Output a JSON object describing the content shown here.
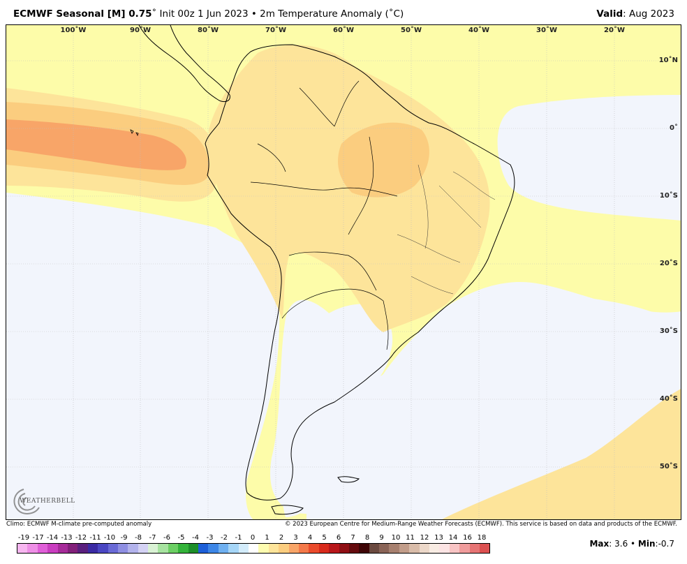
{
  "header": {
    "title_bold": "ECMWF Seasonal [M] 0.75",
    "title_rest": "˚ Init 00z 1 Jun 2023 • 2m Temperature Anomaly (˚C)",
    "valid_label": "Valid",
    "valid_value": ": Aug 2023"
  },
  "map": {
    "lon_labels": [
      "100˚W",
      "90˚W",
      "80˚W",
      "70˚W",
      "60˚W",
      "50˚W",
      "40˚W",
      "30˚W",
      "20˚W"
    ],
    "lat_labels": [
      "10˚N",
      "0˚",
      "10˚S",
      "20˚S",
      "30˚S",
      "40˚S",
      "50˚S"
    ],
    "colors": {
      "ocean_neutral": "#f2f5fc",
      "anom_0_1": "#fdfca9",
      "anom_1_2": "#fde49a",
      "anom_2_3": "#fbcd7f",
      "anom_3_4": "#f8a568"
    }
  },
  "logo": {
    "text": "WEATHERBELL"
  },
  "footer": {
    "left": "Climo: ECMWF M-climate pre-computed anomaly",
    "right": "© 2023 European Centre for Medium-Range Weather Forecasts (ECMWF). This service is based on data and products of the ECMWF."
  },
  "legend": {
    "labels": [
      "-19",
      "-17",
      "-14",
      "-13",
      "-12",
      "-11",
      "-10",
      "-9",
      "-8",
      "-7",
      "-6",
      "-5",
      "-4",
      "-3",
      "-2",
      "-1",
      "0",
      "1",
      "2",
      "3",
      "4",
      "5",
      "6",
      "7",
      "8",
      "9",
      "10",
      "11",
      "12",
      "13",
      "14",
      "16",
      "18"
    ],
    "colors": [
      "#f7b6f0",
      "#ee8fe6",
      "#e05fd8",
      "#c93dbf",
      "#a62b99",
      "#82207a",
      "#5a1f7e",
      "#3b2aa3",
      "#4a46c2",
      "#6a6ad6",
      "#8f8fe2",
      "#b3b3ec",
      "#d4d2f4",
      "#d9f2d4",
      "#a7e3a0",
      "#6ccf64",
      "#34b33a",
      "#1d8f2a",
      "#1d5fd8",
      "#3d86e6",
      "#6fb0f0",
      "#a6d6f7",
      "#d3ecfb",
      "#ffffff",
      "#fdfcb0",
      "#fde49a",
      "#fbcd7f",
      "#f8a568",
      "#f4794a",
      "#ea4b2c",
      "#d82a1c",
      "#b8171a",
      "#8f0f14",
      "#650b0e",
      "#3f0607",
      "#6b4a40",
      "#8a6457",
      "#a7806f",
      "#c29d8a",
      "#d9bca9",
      "#ecd8c9",
      "#f8ece3",
      "#fce4e4",
      "#f8c4c4",
      "#f09c9c",
      "#e67474",
      "#dc5050"
    ]
  },
  "stats": {
    "max_label": "Max",
    "max_value": ": 3.6 • ",
    "min_label": "Min",
    "min_value": ":-0.7"
  }
}
